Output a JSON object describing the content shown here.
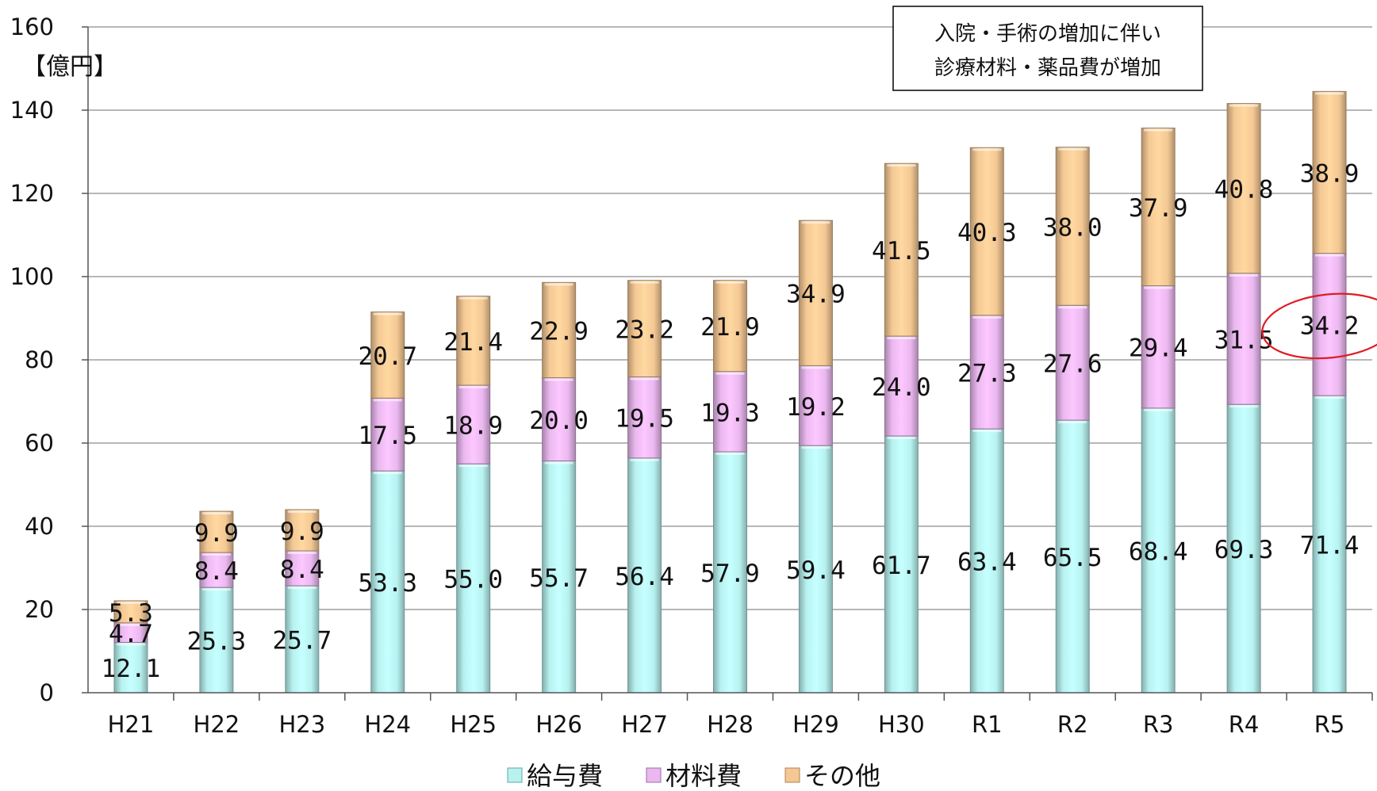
{
  "chart_data": {
    "type": "bar",
    "stacked": true,
    "ylabel": "【億円】",
    "ylim": [
      0,
      160
    ],
    "yticks": [
      "0",
      "20",
      "40",
      "60",
      "80",
      "100",
      "120",
      "140",
      "160"
    ],
    "categories": [
      "H21",
      "H22",
      "H23",
      "H24",
      "H25",
      "H26",
      "H27",
      "H28",
      "H29",
      "H30",
      "R1",
      "R2",
      "R3",
      "R4",
      "R5"
    ],
    "series": [
      {
        "name": "給与費",
        "color": "#b7f2f0",
        "values": [
          12.1,
          25.3,
          25.7,
          53.3,
          55.0,
          55.7,
          56.4,
          57.9,
          59.4,
          61.7,
          63.4,
          65.5,
          68.4,
          69.3,
          71.4
        ],
        "labels": [
          "12.1",
          "25.3",
          "25.7",
          "53.3",
          "55.0",
          "55.7",
          "56.4",
          "57.9",
          "59.4",
          "61.7",
          "63.4",
          "65.5",
          "68.4",
          "69.3",
          "71.4"
        ]
      },
      {
        "name": "材料費",
        "color": "#eab8ef",
        "values": [
          4.7,
          8.4,
          8.4,
          17.5,
          18.9,
          20.0,
          19.5,
          19.3,
          19.2,
          24.0,
          27.3,
          27.6,
          29.4,
          31.5,
          34.2
        ],
        "labels": [
          "4.7",
          "8.4",
          "8.4",
          "17.5",
          "18.9",
          "20.0",
          "19.5",
          "19.3",
          "19.2",
          "24.0",
          "27.3",
          "27.6",
          "29.4",
          "31.5",
          "34.2"
        ]
      },
      {
        "name": "その他",
        "color": "#f4c894",
        "values": [
          5.3,
          9.9,
          9.9,
          20.7,
          21.4,
          22.9,
          23.2,
          21.9,
          34.9,
          41.5,
          40.3,
          38.0,
          37.9,
          40.8,
          38.9
        ],
        "labels": [
          "5.3",
          "9.9",
          "9.9",
          "20.7",
          "21.4",
          "22.9",
          "23.2",
          "21.9",
          "34.9",
          "41.5",
          "40.3",
          "38.0",
          "37.9",
          "40.8",
          "38.9"
        ]
      }
    ],
    "annotation": [
      "入院・手術の増加に伴い",
      "診療材料・薬品費が増加"
    ],
    "highlight": {
      "series": "材料費",
      "category": "R5",
      "color": "#e01b24"
    },
    "grid": true,
    "legend": "bottom-center"
  }
}
